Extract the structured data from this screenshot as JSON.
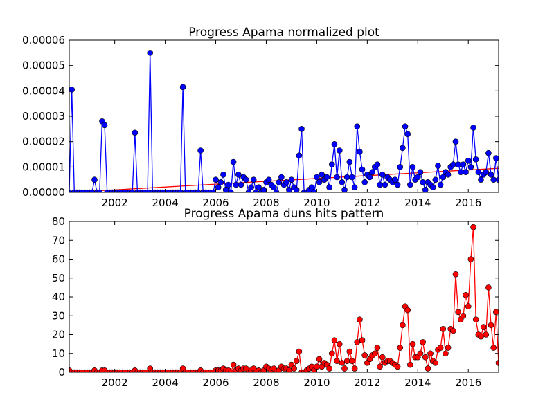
{
  "chart_data": [
    {
      "type": "line",
      "title": "Progress Apama normalized plot",
      "xlim": [
        2000.2,
        2017.2
      ],
      "xticks": [
        2002,
        2004,
        2006,
        2008,
        2010,
        2012,
        2014,
        2016
      ],
      "ylim": [
        0,
        6e-05
      ],
      "yticks": [
        {
          "value": 0,
          "label": "0.00000"
        },
        {
          "value": 1e-05,
          "label": "0.00001"
        },
        {
          "value": 2e-05,
          "label": "0.00002"
        },
        {
          "value": 3e-05,
          "label": "0.00003"
        },
        {
          "value": 4e-05,
          "label": "0.00004"
        },
        {
          "value": 5e-05,
          "label": "0.00005"
        },
        {
          "value": 6e-05,
          "label": "0.00006"
        }
      ],
      "x": [
        2000.2,
        2000.3,
        2000.4,
        2000.5,
        2000.6,
        2000.7,
        2000.8,
        2000.9,
        2001.0,
        2001.1,
        2001.2,
        2001.3,
        2001.4,
        2001.5,
        2001.6,
        2001.7,
        2001.8,
        2001.9,
        2002.0,
        2002.1,
        2002.2,
        2002.3,
        2002.4,
        2002.5,
        2002.6,
        2002.7,
        2002.8,
        2002.9,
        2003.0,
        2003.1,
        2003.2,
        2003.3,
        2003.4,
        2003.5,
        2003.6,
        2003.7,
        2003.8,
        2003.9,
        2004.0,
        2004.1,
        2004.2,
        2004.3,
        2004.4,
        2004.5,
        2004.6,
        2004.7,
        2004.8,
        2004.9,
        2005.0,
        2005.1,
        2005.2,
        2005.3,
        2005.4,
        2005.5,
        2005.6,
        2005.7,
        2005.8,
        2005.9,
        2006.0,
        2006.1,
        2006.2,
        2006.3,
        2006.4,
        2006.5,
        2006.6,
        2006.7,
        2006.8,
        2006.9,
        2007.0,
        2007.1,
        2007.2,
        2007.3,
        2007.4,
        2007.5,
        2007.6,
        2007.7,
        2007.8,
        2007.9,
        2008.0,
        2008.1,
        2008.2,
        2008.3,
        2008.4,
        2008.5,
        2008.6,
        2008.7,
        2008.8,
        2008.9,
        2009.0,
        2009.1,
        2009.2,
        2009.3,
        2009.4,
        2009.5,
        2009.6,
        2009.7,
        2009.8,
        2009.9,
        2010.0,
        2010.1,
        2010.2,
        2010.3,
        2010.4,
        2010.5,
        2010.6,
        2010.7,
        2010.8,
        2010.9,
        2011.0,
        2011.1,
        2011.2,
        2011.3,
        2011.4,
        2011.5,
        2011.6,
        2011.7,
        2011.8,
        2011.9,
        2012.0,
        2012.1,
        2012.2,
        2012.3,
        2012.4,
        2012.5,
        2012.6,
        2012.7,
        2012.8,
        2012.9,
        2013.0,
        2013.1,
        2013.2,
        2013.3,
        2013.4,
        2013.5,
        2013.6,
        2013.7,
        2013.8,
        2013.9,
        2014.0,
        2014.1,
        2014.2,
        2014.3,
        2014.4,
        2014.5,
        2014.6,
        2014.7,
        2014.8,
        2014.9,
        2015.0,
        2015.1,
        2015.2,
        2015.3,
        2015.4,
        2015.5,
        2015.6,
        2015.7,
        2015.8,
        2015.9,
        2016.0,
        2016.1,
        2016.2,
        2016.3,
        2016.4,
        2016.5,
        2016.6,
        2016.7,
        2016.8,
        2016.9,
        2017.0,
        2017.1,
        2017.2
      ],
      "series": [
        {
          "color": "#0000ff",
          "values": [
            0,
            4.05e-05,
            0,
            0,
            0,
            0,
            0,
            0,
            0,
            0,
            5e-06,
            0,
            0,
            2.8e-05,
            2.65e-05,
            0,
            0,
            0,
            0,
            0,
            0,
            0,
            0,
            0,
            0,
            0,
            2.35e-05,
            0,
            0,
            0,
            0,
            0,
            5.5e-05,
            0,
            0,
            0,
            0,
            0,
            0,
            0,
            0,
            0,
            0,
            0,
            0,
            4.15e-05,
            0,
            0,
            0,
            0,
            0,
            0,
            1.65e-05,
            0,
            0,
            0,
            0,
            0,
            5e-06,
            2e-06,
            4e-06,
            7e-06,
            1e-06,
            3e-06,
            0,
            1.2e-05,
            3e-06,
            7e-06,
            3e-06,
            6e-06,
            5e-06,
            0,
            2e-06,
            5e-06,
            0,
            2e-06,
            0,
            1e-06,
            4e-06,
            5e-06,
            3e-06,
            2e-06,
            0,
            4e-06,
            6e-06,
            3e-06,
            4e-06,
            1e-06,
            5e-06,
            2e-06,
            1e-06,
            1.45e-05,
            2.5e-05,
            0,
            0,
            1e-06,
            2e-06,
            0,
            6e-06,
            4e-06,
            7e-06,
            5e-06,
            6e-06,
            2e-06,
            1.1e-05,
            1.9e-05,
            6e-06,
            1.65e-05,
            4e-06,
            1e-06,
            6e-06,
            1.2e-05,
            6e-06,
            2e-06,
            2.6e-05,
            1.6e-05,
            9e-06,
            4e-06,
            7e-06,
            6e-06,
            8e-06,
            1e-05,
            1.1e-05,
            3e-06,
            7e-06,
            3e-06,
            6e-06,
            5e-06,
            4e-06,
            5e-06,
            3e-06,
            1e-05,
            1.75e-05,
            2.6e-05,
            2.3e-05,
            3e-06,
            1e-05,
            5e-06,
            6e-06,
            8e-06,
            4e-06,
            1e-06,
            4e-06,
            3e-06,
            2e-06,
            5e-06,
            1.05e-05,
            3e-06,
            6e-06,
            8e-06,
            7e-06,
            1e-05,
            1.1e-05,
            2e-05,
            1.1e-05,
            8e-06,
            1.1e-05,
            8e-06,
            1.25e-05,
            1e-05,
            2.55e-05,
            1.3e-05,
            8e-06,
            5e-06,
            7e-06,
            8e-06,
            1.55e-05,
            7e-06,
            5e-06,
            1.35e-05,
            5e-06
          ]
        }
      ],
      "trend": {
        "color": "#ff0000",
        "x": [
          2000.2,
          2017.2
        ],
        "values": [
          0,
          9.5e-06
        ]
      }
    },
    {
      "type": "line",
      "title": "Progress Apama duns hits pattern",
      "xlim": [
        2000.2,
        2017.2
      ],
      "xticks": [
        2002,
        2004,
        2006,
        2008,
        2010,
        2012,
        2014,
        2016
      ],
      "ylim": [
        0,
        80
      ],
      "yticks": [
        0,
        10,
        20,
        30,
        40,
        50,
        60,
        70,
        80
      ],
      "x": [
        2000.2,
        2000.3,
        2000.4,
        2000.5,
        2000.6,
        2000.7,
        2000.8,
        2000.9,
        2001.0,
        2001.1,
        2001.2,
        2001.3,
        2001.4,
        2001.5,
        2001.6,
        2001.7,
        2001.8,
        2001.9,
        2002.0,
        2002.1,
        2002.2,
        2002.3,
        2002.4,
        2002.5,
        2002.6,
        2002.7,
        2002.8,
        2002.9,
        2003.0,
        2003.1,
        2003.2,
        2003.3,
        2003.4,
        2003.5,
        2003.6,
        2003.7,
        2003.8,
        2003.9,
        2004.0,
        2004.1,
        2004.2,
        2004.3,
        2004.4,
        2004.5,
        2004.6,
        2004.7,
        2004.8,
        2004.9,
        2005.0,
        2005.1,
        2005.2,
        2005.3,
        2005.4,
        2005.5,
        2005.6,
        2005.7,
        2005.8,
        2005.9,
        2006.0,
        2006.1,
        2006.2,
        2006.3,
        2006.4,
        2006.5,
        2006.6,
        2006.7,
        2006.8,
        2006.9,
        2007.0,
        2007.1,
        2007.2,
        2007.3,
        2007.4,
        2007.5,
        2007.6,
        2007.7,
        2007.8,
        2007.9,
        2008.0,
        2008.1,
        2008.2,
        2008.3,
        2008.4,
        2008.5,
        2008.6,
        2008.7,
        2008.8,
        2008.9,
        2009.0,
        2009.1,
        2009.2,
        2009.3,
        2009.4,
        2009.5,
        2009.6,
        2009.7,
        2009.8,
        2009.9,
        2010.0,
        2010.1,
        2010.2,
        2010.3,
        2010.4,
        2010.5,
        2010.6,
        2010.7,
        2010.8,
        2010.9,
        2011.0,
        2011.1,
        2011.2,
        2011.3,
        2011.4,
        2011.5,
        2011.6,
        2011.7,
        2011.8,
        2011.9,
        2012.0,
        2012.1,
        2012.2,
        2012.3,
        2012.4,
        2012.5,
        2012.6,
        2012.7,
        2012.8,
        2012.9,
        2013.0,
        2013.1,
        2013.2,
        2013.3,
        2013.4,
        2013.5,
        2013.6,
        2013.7,
        2013.8,
        2013.9,
        2014.0,
        2014.1,
        2014.2,
        2014.3,
        2014.4,
        2014.5,
        2014.6,
        2014.7,
        2014.8,
        2014.9,
        2015.0,
        2015.1,
        2015.2,
        2015.3,
        2015.4,
        2015.5,
        2015.6,
        2015.7,
        2015.8,
        2015.9,
        2016.0,
        2016.1,
        2016.2,
        2016.3,
        2016.4,
        2016.5,
        2016.6,
        2016.7,
        2016.8,
        2016.9,
        2017.0,
        2017.1,
        2017.2
      ],
      "series": [
        {
          "color": "#ff0000",
          "values": [
            1,
            0,
            0,
            0,
            0,
            0,
            0,
            0,
            0,
            0,
            1,
            0,
            0,
            1,
            1,
            0,
            0,
            0,
            0,
            0,
            0,
            0,
            0,
            0,
            0,
            0,
            1,
            0,
            0,
            0,
            0,
            0,
            2,
            0,
            0,
            0,
            0,
            0,
            0,
            0,
            0,
            0,
            0,
            0,
            0,
            2,
            0,
            0,
            0,
            0,
            0,
            0,
            1,
            0,
            0,
            0,
            0,
            0,
            1,
            1,
            1,
            2,
            1,
            1,
            0,
            4,
            1,
            2,
            1,
            2,
            2,
            0,
            1,
            2,
            0,
            1,
            0,
            1,
            3,
            2,
            1,
            2,
            0,
            1,
            3,
            2,
            2,
            1,
            4,
            2,
            6,
            11,
            0,
            0,
            1,
            2,
            3,
            1,
            3,
            7,
            3,
            5,
            4,
            2,
            10,
            17,
            6,
            15,
            5,
            2,
            6,
            11,
            6,
            2,
            16,
            28,
            17,
            9,
            5,
            7,
            9,
            10,
            13,
            3,
            8,
            5,
            6,
            6,
            5,
            4,
            3,
            13,
            25,
            35,
            33,
            4,
            15,
            8,
            8,
            10,
            16,
            8,
            2,
            10,
            6,
            5,
            12,
            13,
            23,
            10,
            13,
            23,
            22,
            52,
            32,
            28,
            30,
            41,
            35,
            60,
            77,
            28,
            20,
            19,
            24,
            20,
            45,
            25,
            13,
            32,
            5
          ]
        }
      ]
    }
  ]
}
